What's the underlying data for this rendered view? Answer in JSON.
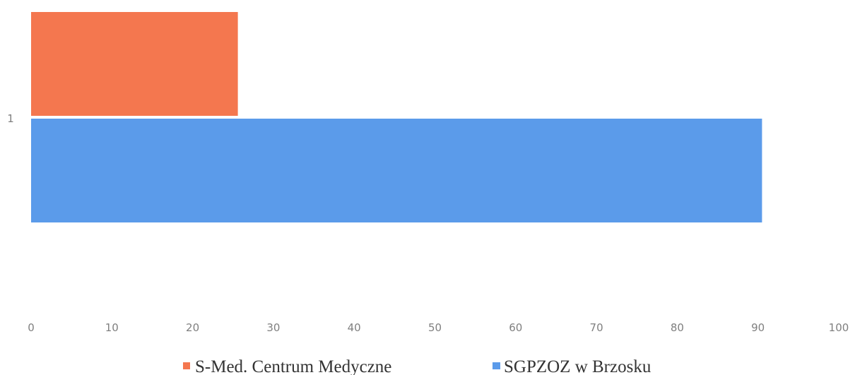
{
  "chart_data": {
    "type": "bar",
    "orientation": "horizontal",
    "categories": [
      "1"
    ],
    "series": [
      {
        "name": "S-Med. Centrum Medyczne",
        "values": [
          25.6
        ],
        "color": "#f4774f"
      },
      {
        "name": "SGPZOZ w Brzosku",
        "values": [
          90.5
        ],
        "color": "#5b9bea"
      }
    ],
    "x_ticks": [
      "0",
      "10",
      "20",
      "30",
      "40",
      "50",
      "60",
      "70",
      "80",
      "90",
      "100"
    ],
    "xlim": [
      0,
      100
    ],
    "title": "",
    "xlabel": "",
    "ylabel": "",
    "grid": false,
    "legend_position": "bottom"
  }
}
